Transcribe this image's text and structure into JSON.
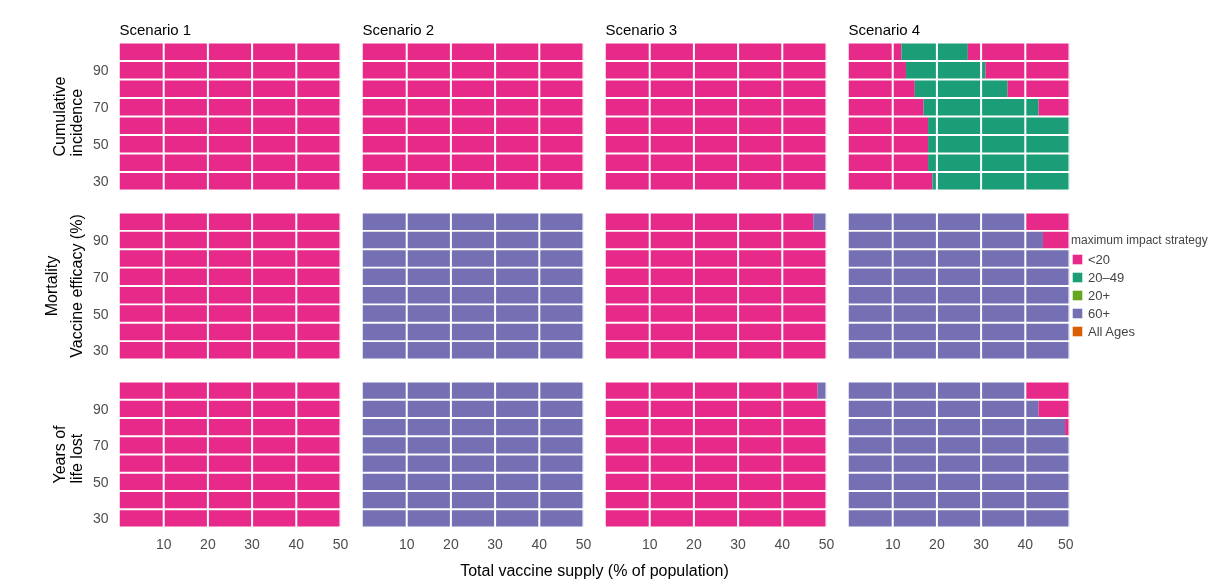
{
  "chart_data": [
    {
      "type": "bar",
      "orientation": "horizontal",
      "stacked": true,
      "title": "Scenario 1",
      "subtitle": "Cumulative incidence",
      "categories": [
        null,
        "90",
        null,
        "70",
        null,
        "50",
        null,
        "30"
      ],
      "xlim": [
        0,
        50
      ],
      "xticks": [
        10,
        20,
        30,
        40,
        50
      ],
      "grid": "x",
      "tick_labels": "y",
      "series": [
        {
          "color": "#e7298a",
          "values": [
            50,
            50,
            50,
            50,
            50,
            50,
            50,
            50
          ]
        }
      ]
    },
    {
      "type": "bar",
      "orientation": "horizontal",
      "stacked": true,
      "title": "Scenario 2",
      "categories": [
        null,
        "90",
        null,
        "70",
        null,
        "50",
        null,
        "30"
      ],
      "xlim": [
        0,
        50
      ],
      "xticks": [
        10,
        20,
        30,
        40,
        50
      ],
      "grid": "x",
      "tick_labels": false,
      "series": [
        {
          "color": "#e7298a",
          "values": [
            50,
            50,
            50,
            50,
            50,
            50,
            50,
            50
          ]
        }
      ]
    },
    {
      "type": "bar",
      "orientation": "horizontal",
      "stacked": true,
      "title": "Scenario 3",
      "categories": [
        null,
        "90",
        null,
        "70",
        null,
        "50",
        null,
        "30"
      ],
      "xlim": [
        0,
        50
      ],
      "xticks": [
        10,
        20,
        30,
        40,
        50
      ],
      "grid": "x",
      "tick_labels": false,
      "series": [
        {
          "color": "#e7298a",
          "values": [
            50,
            50,
            50,
            50,
            50,
            50,
            50,
            50
          ]
        }
      ]
    },
    {
      "type": "bar",
      "orientation": "horizontal",
      "stacked": true,
      "title": "Scenario 4",
      "categories": [
        null,
        "90",
        null,
        "70",
        null,
        "50",
        null,
        "30"
      ],
      "xlim": [
        0,
        50
      ],
      "xticks": [
        10,
        20,
        30,
        40,
        50
      ],
      "grid": "x",
      "tick_labels": false,
      "series": [
        {
          "color": "#e7298a",
          "values": [
            12,
            13,
            15,
            17,
            18,
            18,
            18,
            19
          ]
        },
        {
          "color": "#1b9e77",
          "values": [
            15,
            18,
            21,
            26,
            32,
            32,
            32,
            31
          ]
        },
        {
          "color": "#e7298a",
          "values": [
            23,
            19,
            14,
            7,
            null,
            null,
            null,
            null
          ]
        }
      ]
    },
    {
      "type": "bar",
      "orientation": "horizontal",
      "stacked": true,
      "subtitle": "Mortality",
      "ylabel": "Vaccine efficacy (%)",
      "categories": [
        null,
        "90",
        null,
        "70",
        null,
        "50",
        null,
        "30"
      ],
      "xlim": [
        0,
        50
      ],
      "xticks": [
        10,
        20,
        30,
        40,
        50
      ],
      "grid": "x",
      "tick_labels": "y",
      "series": [
        {
          "color": "#e7298a",
          "values": [
            50,
            50,
            50,
            50,
            50,
            50,
            50,
            50
          ]
        }
      ]
    },
    {
      "type": "bar",
      "orientation": "horizontal",
      "stacked": true,
      "categories": [
        null,
        "90",
        null,
        "70",
        null,
        "50",
        null,
        "30"
      ],
      "xlim": [
        0,
        50
      ],
      "xticks": [
        10,
        20,
        30,
        40,
        50
      ],
      "grid": "x",
      "tick_labels": false,
      "series": [
        {
          "color": "#7570b3",
          "values": [
            50,
            50,
            50,
            50,
            50,
            50,
            50,
            50
          ]
        }
      ]
    },
    {
      "type": "bar",
      "orientation": "horizontal",
      "stacked": true,
      "categories": [
        null,
        "90",
        null,
        "70",
        null,
        "50",
        null,
        "30"
      ],
      "xlim": [
        0,
        50
      ],
      "xticks": [
        10,
        20,
        30,
        40,
        50
      ],
      "grid": "x",
      "tick_labels": false,
      "series": [
        {
          "color": "#e7298a",
          "values": [
            47,
            50,
            50,
            50,
            50,
            50,
            50,
            50
          ]
        },
        {
          "color": "#7570b3",
          "values": [
            3,
            null,
            null,
            null,
            null,
            null,
            null,
            null
          ]
        }
      ]
    },
    {
      "type": "bar",
      "orientation": "horizontal",
      "stacked": true,
      "categories": [
        null,
        "90",
        null,
        "70",
        null,
        "50",
        null,
        "30"
      ],
      "xlim": [
        0,
        50
      ],
      "xticks": [
        10,
        20,
        30,
        40,
        50
      ],
      "grid": "x",
      "tick_labels": false,
      "legend": "right",
      "legend_title": "maximum impact strategy",
      "series": [
        {
          "color": "#7570b3",
          "values": [
            40,
            44,
            50,
            50,
            50,
            50,
            50,
            50
          ]
        },
        {
          "name": "<20",
          "color": "#e7298a",
          "values": [
            10,
            6,
            null,
            null,
            null,
            null,
            null,
            null
          ]
        },
        {
          "name": "20–49",
          "color": "#1b9e77",
          "values": [
            null,
            null,
            null,
            null,
            null,
            null,
            null,
            null
          ]
        },
        {
          "name": "20+",
          "color": "#66a61e",
          "values": [
            null,
            null,
            null,
            null,
            null,
            null,
            null,
            null
          ]
        },
        {
          "name": "60+",
          "color": "#7570b3",
          "values": [
            null,
            null,
            null,
            null,
            null,
            null,
            null,
            null
          ]
        },
        {
          "name": "All Ages",
          "color": "#d95f02",
          "values": [
            null,
            null,
            null,
            null,
            null,
            null,
            null,
            null
          ]
        }
      ]
    },
    {
      "type": "bar",
      "orientation": "horizontal",
      "stacked": true,
      "subtitle": "Years of life lost",
      "categories": [
        null,
        "90",
        null,
        "70",
        null,
        "50",
        null,
        "30"
      ],
      "xlim": [
        0,
        50
      ],
      "xticks": [
        10,
        20,
        30,
        40,
        50
      ],
      "grid": "x",
      "series": [
        {
          "color": "#e7298a",
          "values": [
            50,
            50,
            50,
            50,
            50,
            50,
            50,
            50
          ]
        }
      ]
    },
    {
      "type": "bar",
      "orientation": "horizontal",
      "stacked": true,
      "xlabel": "Total vaccine supply (% of population)",
      "categories": [
        null,
        "90",
        null,
        "70",
        null,
        "50",
        null,
        "30"
      ],
      "xlim": [
        0,
        50
      ],
      "xticks": [
        10,
        20,
        30,
        40,
        50
      ],
      "grid": "x",
      "tick_labels": "x",
      "series": [
        {
          "color": "#7570b3",
          "values": [
            50,
            50,
            50,
            50,
            50,
            50,
            50,
            50
          ]
        }
      ]
    },
    {
      "type": "bar",
      "orientation": "horizontal",
      "stacked": true,
      "categories": [
        null,
        "90",
        null,
        "70",
        null,
        "50",
        null,
        "30"
      ],
      "xlim": [
        0,
        50
      ],
      "xticks": [
        10,
        20,
        30,
        40,
        50
      ],
      "grid": "x",
      "tick_labels": "x",
      "series": [
        {
          "color": "#e7298a",
          "values": [
            48,
            50,
            50,
            50,
            50,
            50,
            50,
            50
          ]
        },
        {
          "color": "#7570b3",
          "values": [
            2,
            null,
            null,
            null,
            null,
            null,
            null,
            null
          ]
        }
      ]
    },
    {
      "type": "bar",
      "orientation": "horizontal",
      "stacked": true,
      "categories": [
        null,
        "90",
        null,
        "70",
        null,
        "50",
        null,
        "30"
      ],
      "xlim": [
        0,
        50
      ],
      "xticks": [
        10,
        20,
        30,
        40,
        50
      ],
      "grid": "x",
      "tick_labels": "x",
      "series": [
        {
          "color": "#7570b3",
          "values": [
            40,
            43,
            49,
            50,
            50,
            50,
            50,
            50
          ]
        },
        {
          "color": "#e7298a",
          "values": [
            10,
            7,
            1,
            null,
            null,
            null,
            null,
            null
          ]
        }
      ]
    }
  ]
}
